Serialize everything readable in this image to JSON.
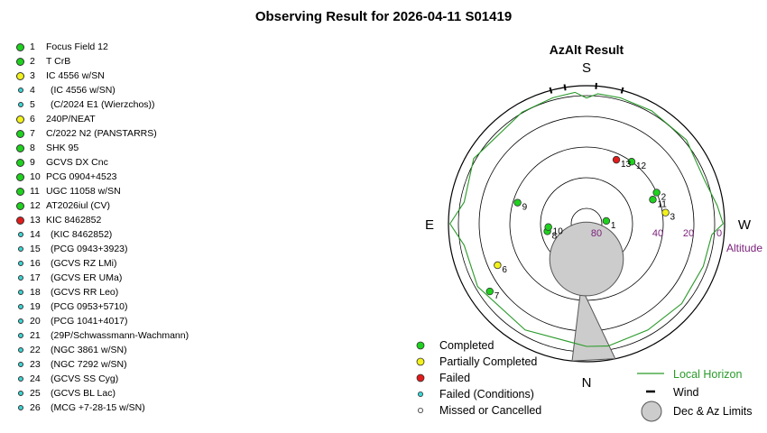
{
  "title": "Observing Result for 2026-04-11 S01419",
  "status_colors": {
    "completed": "#1ed21e",
    "partial": "#f2f21a",
    "failed": "#e21b1b",
    "failed_conditions": "#38d6d6",
    "missed": "#ffffff"
  },
  "targets": [
    {
      "num": "1",
      "name": "Focus Field 12",
      "status": "completed"
    },
    {
      "num": "2",
      "name": "T CrB",
      "status": "completed"
    },
    {
      "num": "3",
      "name": "IC 4556 w/SN",
      "status": "partial"
    },
    {
      "num": "4",
      "name": "(IC 4556 w/SN)",
      "status": "failed_conditions"
    },
    {
      "num": "5",
      "name": "(C/2024 E1 (Wierzchos))",
      "status": "failed_conditions"
    },
    {
      "num": "6",
      "name": "240P/NEAT",
      "status": "partial"
    },
    {
      "num": "7",
      "name": "C/2022 N2 (PANSTARRS)",
      "status": "completed"
    },
    {
      "num": "8",
      "name": "SHK 95",
      "status": "completed"
    },
    {
      "num": "9",
      "name": "GCVS DX Cnc",
      "status": "completed"
    },
    {
      "num": "10",
      "name": "PCG 0904+4523",
      "status": "completed"
    },
    {
      "num": "11",
      "name": "UGC 11058 w/SN",
      "status": "completed"
    },
    {
      "num": "12",
      "name": "AT2026iul (CV)",
      "status": "completed"
    },
    {
      "num": "13",
      "name": "KIC 8462852",
      "status": "failed"
    },
    {
      "num": "14",
      "name": "(KIC 8462852)",
      "status": "failed_conditions"
    },
    {
      "num": "15",
      "name": "(PCG 0943+3923)",
      "status": "failed_conditions"
    },
    {
      "num": "16",
      "name": "(GCVS RZ LMi)",
      "status": "failed_conditions"
    },
    {
      "num": "17",
      "name": "(GCVS ER UMa)",
      "status": "failed_conditions"
    },
    {
      "num": "18",
      "name": "(GCVS RR Leo)",
      "status": "failed_conditions"
    },
    {
      "num": "19",
      "name": "(PCG 0953+5710)",
      "status": "failed_conditions"
    },
    {
      "num": "20",
      "name": "(PCG 1041+4017)",
      "status": "failed_conditions"
    },
    {
      "num": "21",
      "name": "(29P/Schwassmann-Wachmann)",
      "status": "failed_conditions"
    },
    {
      "num": "22",
      "name": "(NGC 3861 w/SN)",
      "status": "failed_conditions"
    },
    {
      "num": "23",
      "name": "(NGC 7292 w/SN)",
      "status": "failed_conditions"
    },
    {
      "num": "24",
      "name": "(GCVS SS Cyg)",
      "status": "failed_conditions"
    },
    {
      "num": "25",
      "name": "(GCVS BL Lac)",
      "status": "failed_conditions"
    },
    {
      "num": "26",
      "name": "(MCG +7-28-15 w/SN)",
      "status": "failed_conditions"
    }
  ],
  "chart_data": {
    "type": "scatter",
    "projection": "polar-azimuth-altitude",
    "title": "AzAlt Result",
    "compass": {
      "top": "S",
      "bottom": "N",
      "left": "E",
      "right": "W"
    },
    "altitude_rings": [
      0,
      20,
      40,
      60,
      80
    ],
    "altitude_tick_labels": [
      "0",
      "20",
      "40",
      "80"
    ],
    "altitude_axis_label": "Altitude",
    "points": [
      {
        "label": "1",
        "status": "completed",
        "az": 262,
        "alt": 77
      },
      {
        "label": "2",
        "status": "completed",
        "az": 246,
        "alt": 40
      },
      {
        "label": "3",
        "status": "partial",
        "az": 262,
        "alt": 38
      },
      {
        "label": "6",
        "status": "partial",
        "az": 65,
        "alt": 26
      },
      {
        "label": "7",
        "status": "completed",
        "az": 55,
        "alt": 13
      },
      {
        "label": "8",
        "status": "completed",
        "az": 79,
        "alt": 64
      },
      {
        "label": "9",
        "status": "completed",
        "az": 107,
        "alt": 43
      },
      {
        "label": "10",
        "status": "completed",
        "az": 85,
        "alt": 65
      },
      {
        "label": "11",
        "status": "completed",
        "az": 250,
        "alt": 44
      },
      {
        "label": "12",
        "status": "completed",
        "az": 216,
        "alt": 40
      },
      {
        "label": "13",
        "status": "failed",
        "az": 205,
        "alt": 44
      }
    ],
    "wind_marks_az": [
      165,
      171,
      184,
      195
    ],
    "dec_az_limit": {
      "circle_center_az": 0,
      "circle_center_alt": 67,
      "circle_radius_deg": 24,
      "wedge_az": [
        6,
        348
      ]
    },
    "local_horizon": [
      [
        0,
        10
      ],
      [
        30,
        10
      ],
      [
        60,
        8
      ],
      [
        80,
        9
      ],
      [
        90,
        1
      ],
      [
        100,
        9
      ],
      [
        120,
        5
      ],
      [
        150,
        6
      ],
      [
        165,
        5
      ],
      [
        175,
        4
      ],
      [
        180,
        8
      ],
      [
        185,
        5
      ],
      [
        195,
        5
      ],
      [
        210,
        5
      ],
      [
        230,
        5
      ],
      [
        250,
        8
      ],
      [
        262,
        4
      ],
      [
        270,
        1
      ],
      [
        275,
        8
      ],
      [
        290,
        9
      ],
      [
        310,
        9
      ],
      [
        330,
        10
      ],
      [
        350,
        9
      ]
    ]
  },
  "legend": {
    "completed": "Completed",
    "partial": "Partially Completed",
    "failed": "Failed",
    "failed_conditions": "Failed (Conditions)",
    "missed": "Missed or Cancelled",
    "local_horizon": "Local Horizon",
    "wind": "Wind",
    "dec_az_limits": "Dec & Az Limits",
    "horizon_color": "#2a9a2a",
    "label_color": "#7a1f7a"
  }
}
